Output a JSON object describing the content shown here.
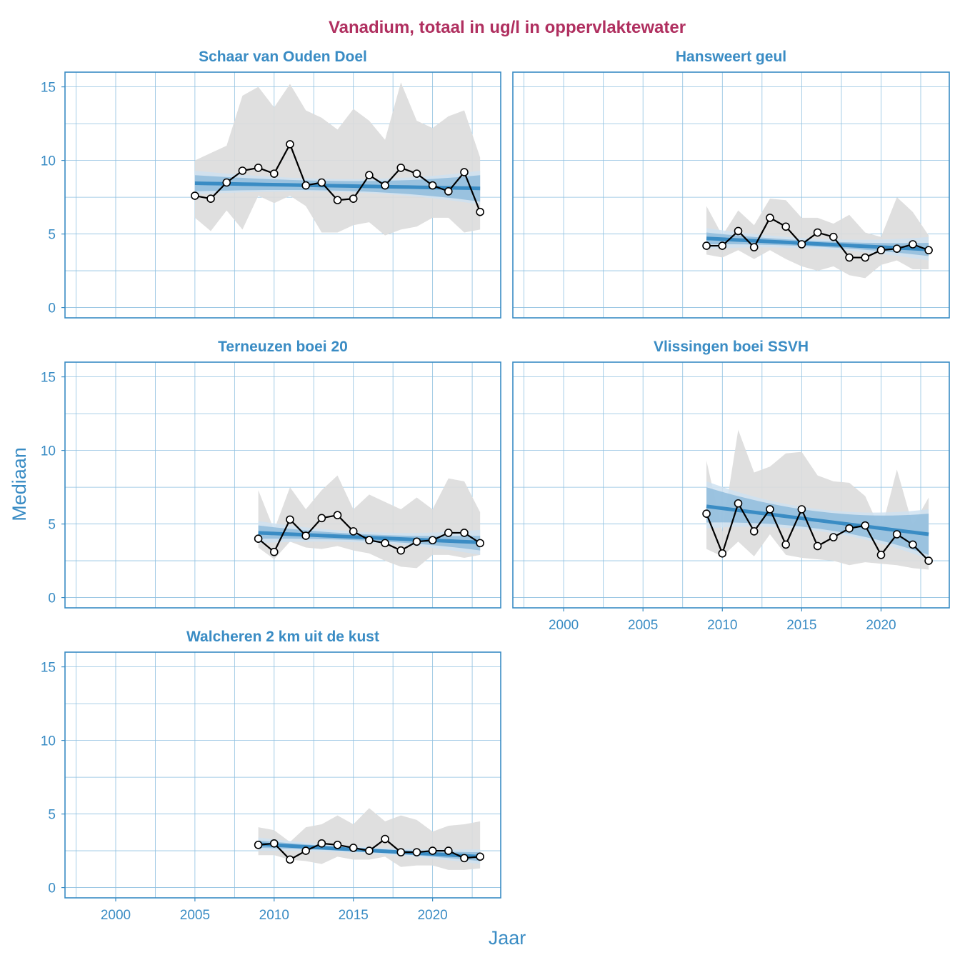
{
  "chart_data": {
    "type": "line",
    "title": "Vanadium, totaal in ug/l in oppervlaktewater",
    "xlabel": "Jaar",
    "ylabel": "Mediaan",
    "xlim": [
      1996.8,
      2024.3
    ],
    "ylim": [
      -0.7,
      16.0
    ],
    "x_ticks": [
      2000,
      2005,
      2010,
      2015,
      2020
    ],
    "y_ticks": [
      0,
      5,
      10,
      15
    ],
    "grid": true,
    "colors": {
      "title": "#b03060",
      "axis_text": "#3a8cc4",
      "frame": "#3a8cc4",
      "grid": "#8fc0e0",
      "trend": "#3a8cc4",
      "trend_band_dark": "#90bcdc",
      "trend_band_light": "#cfe2f1",
      "range_band": "#dcdcdc",
      "line": "#000000",
      "point_fill": "#ffffff"
    },
    "panels": [
      {
        "title": "Schaar van Ouden Doel",
        "x": [
          2005,
          2006,
          2007,
          2008,
          2009,
          2010,
          2011,
          2012,
          2013,
          2014,
          2015,
          2016,
          2017,
          2018,
          2019,
          2020,
          2021,
          2022,
          2023
        ],
        "median": [
          7.6,
          7.4,
          8.5,
          9.3,
          9.5,
          9.1,
          11.1,
          8.3,
          8.5,
          7.3,
          7.4,
          9.0,
          8.3,
          9.5,
          9.1,
          8.3,
          7.9,
          9.2,
          6.5
        ],
        "range_low": [
          6.1,
          5.2,
          6.6,
          5.3,
          7.6,
          7.1,
          7.6,
          6.9,
          5.1,
          5.1,
          5.6,
          5.8,
          4.9,
          5.3,
          5.5,
          6.1,
          6.1,
          5.1,
          5.3
        ],
        "range_high": [
          10.0,
          10.5,
          11.0,
          14.4,
          15.0,
          13.6,
          15.2,
          13.4,
          12.9,
          12.1,
          13.5,
          12.7,
          11.4,
          15.3,
          12.7,
          12.2,
          13.0,
          13.4,
          10.2
        ],
        "trend": [
          8.45,
          8.1
        ],
        "trend_band_dark": [
          [
            7.9,
            9.0
          ],
          [
            7.2,
            9.0
          ]
        ],
        "trend_band_light": [
          [
            7.7,
            9.3
          ],
          [
            7.0,
            9.3
          ]
        ],
        "show_x_ticks": false
      },
      {
        "title": "Hansweert geul",
        "x": [
          2009,
          2010,
          2011,
          2012,
          2013,
          2014,
          2015,
          2016,
          2017,
          2018,
          2019,
          2020,
          2021,
          2022,
          2023
        ],
        "median": [
          4.2,
          4.2,
          5.2,
          4.1,
          6.1,
          5.5,
          4.3,
          5.1,
          4.8,
          3.4,
          3.4,
          3.9,
          4.0,
          4.3,
          3.9
        ],
        "range_low": [
          3.6,
          3.4,
          3.9,
          3.3,
          3.9,
          3.3,
          2.8,
          2.5,
          2.8,
          2.2,
          2.0,
          2.9,
          3.2,
          2.6,
          2.6
        ],
        "range_high": [
          6.9,
          4.9,
          6.6,
          5.6,
          7.4,
          7.3,
          6.1,
          6.1,
          5.7,
          6.3,
          5.1,
          4.8,
          7.5,
          6.5,
          4.9
        ],
        "trend": [
          4.7,
          3.95
        ],
        "trend_band_dark": [
          [
            4.3,
            5.1
          ],
          [
            3.5,
            4.4
          ]
        ],
        "trend_band_light": [
          [
            4.0,
            5.4
          ],
          [
            3.2,
            4.8
          ]
        ],
        "show_x_ticks": false
      },
      {
        "title": "Terneuzen boei 20",
        "x": [
          2009,
          2010,
          2011,
          2012,
          2013,
          2014,
          2015,
          2016,
          2017,
          2018,
          2019,
          2020,
          2021,
          2022,
          2023
        ],
        "median": [
          4.0,
          3.1,
          5.3,
          4.2,
          5.4,
          5.6,
          4.5,
          3.9,
          3.7,
          3.2,
          3.8,
          3.9,
          4.4,
          4.4,
          3.7
        ],
        "range_low": [
          3.4,
          2.6,
          3.8,
          3.4,
          3.3,
          3.5,
          3.2,
          3.0,
          2.5,
          2.1,
          2.0,
          2.9,
          2.9,
          2.7,
          2.9
        ],
        "range_high": [
          7.3,
          4.6,
          7.5,
          6.0,
          7.3,
          8.3,
          6.0,
          7.0,
          6.5,
          6.0,
          6.8,
          6.0,
          8.1,
          7.9,
          5.8
        ],
        "trend": [
          4.4,
          3.75
        ],
        "trend_band_dark": [
          [
            4.0,
            4.9
          ],
          [
            3.2,
            4.2
          ]
        ],
        "trend_band_light": [
          [
            3.7,
            5.2
          ],
          [
            2.9,
            4.6
          ]
        ],
        "show_x_ticks": false
      },
      {
        "title": "Vlissingen boei SSVH",
        "x": [
          2009,
          2010,
          2011,
          2012,
          2013,
          2014,
          2015,
          2016,
          2017,
          2018,
          2019,
          2020,
          2021,
          2022,
          2023
        ],
        "median": [
          5.7,
          3.0,
          6.4,
          4.5,
          6.0,
          3.6,
          6.0,
          3.5,
          4.1,
          4.7,
          4.9,
          2.9,
          4.3,
          3.6,
          2.5
        ],
        "range_low": [
          3.3,
          2.8,
          3.8,
          2.8,
          4.3,
          2.9,
          2.7,
          2.6,
          2.5,
          2.2,
          2.4,
          2.3,
          2.2,
          2.0,
          1.9
        ],
        "range_high": [
          9.3,
          4.5,
          11.4,
          8.5,
          8.9,
          9.8,
          9.9,
          8.3,
          7.9,
          7.8,
          6.9,
          4.5,
          8.7,
          4.9,
          6.8
        ],
        "trend": [
          6.2,
          4.3
        ],
        "trend_band_dark": [
          [
            5.1,
            7.5
          ],
          [
            2.9,
            5.7
          ]
        ],
        "trend_band_light": [
          [
            4.7,
            7.9
          ],
          [
            2.6,
            6.0
          ]
        ],
        "show_x_ticks": true
      },
      {
        "title": "Walcheren 2 km uit de kust",
        "x": [
          2009,
          2010,
          2011,
          2012,
          2013,
          2014,
          2015,
          2016,
          2017,
          2018,
          2019,
          2020,
          2021,
          2022,
          2023
        ],
        "median": [
          2.9,
          3.0,
          1.9,
          2.5,
          3.0,
          2.9,
          2.7,
          2.5,
          3.3,
          2.4,
          2.4,
          2.5,
          2.5,
          2.0,
          2.1
        ],
        "range_low": [
          2.2,
          2.2,
          1.9,
          1.8,
          1.6,
          2.1,
          1.9,
          1.9,
          2.1,
          1.4,
          1.5,
          1.5,
          1.2,
          1.2,
          1.3
        ],
        "range_high": [
          4.1,
          3.9,
          3.1,
          4.1,
          4.3,
          4.9,
          4.3,
          5.4,
          4.5,
          4.9,
          4.6,
          3.8,
          4.2,
          4.3,
          4.5
        ],
        "trend": [
          2.95,
          2.1
        ],
        "trend_band_dark": [
          [
            2.7,
            3.2
          ],
          [
            1.8,
            2.4
          ]
        ],
        "trend_band_light": [
          [
            2.5,
            3.4
          ],
          [
            1.6,
            2.6
          ]
        ],
        "show_x_ticks": true
      }
    ]
  }
}
